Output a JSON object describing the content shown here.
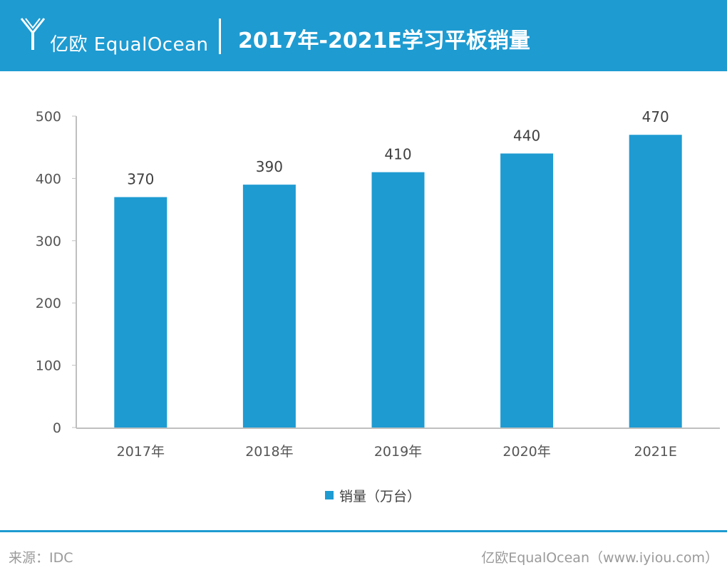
{
  "header": {
    "brand": "亿欧 EqualOcean",
    "title": "2017年-2021E学习平板销量",
    "logo_icon": "equalocean-y-logo-icon",
    "background": "#1e9bd1"
  },
  "chart_data": {
    "type": "bar",
    "categories": [
      "2017年",
      "2018年",
      "2019年",
      "2020年",
      "2021E"
    ],
    "series": [
      {
        "name": "销量（万台）",
        "values": [
          370,
          390,
          410,
          440,
          470
        ],
        "color": "#1e9bd1"
      }
    ],
    "data_labels": [
      "370",
      "390",
      "410",
      "440",
      "470"
    ],
    "yticks": [
      0,
      100,
      200,
      300,
      400,
      500
    ],
    "ylim": [
      0,
      500
    ],
    "grid": false,
    "legend_position": "bottom-center"
  },
  "legend": {
    "label": "销量（万台）"
  },
  "footer": {
    "source": "来源：IDC",
    "credit": "亿欧EqualOcean（www.iyiou.com）"
  }
}
